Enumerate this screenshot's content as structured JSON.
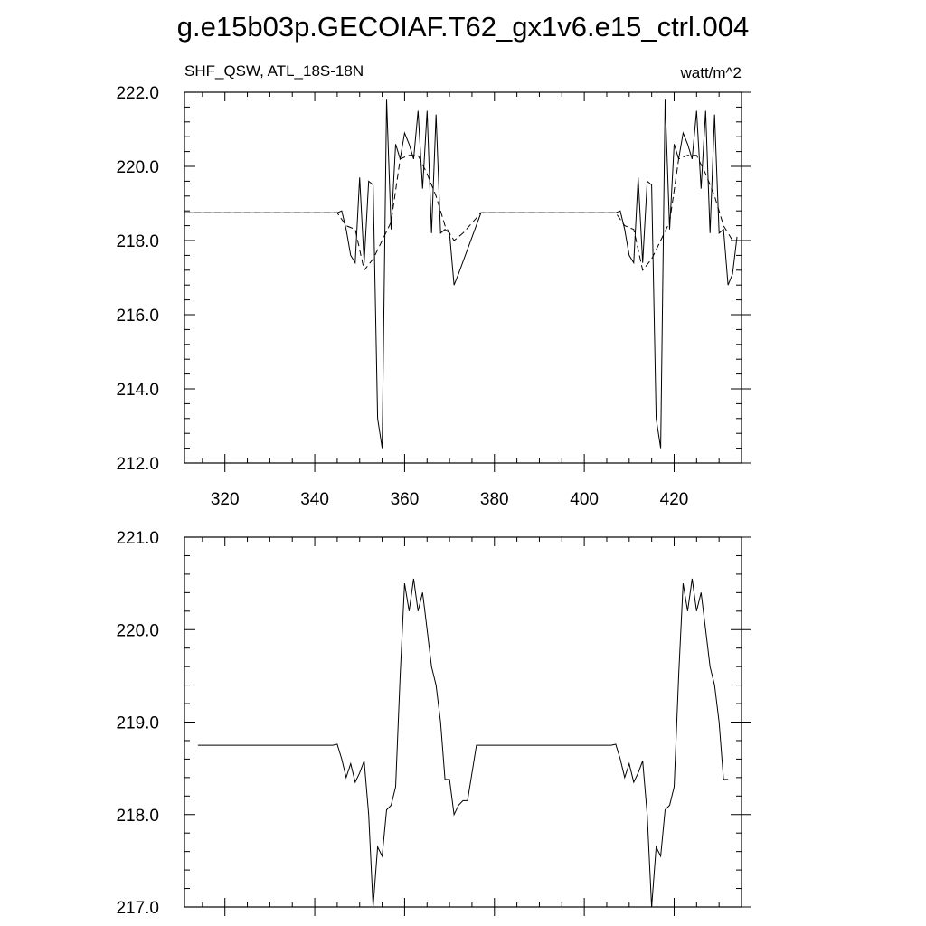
{
  "title": "g.e15b03p.GECOIAF.T62_gx1v6.e15_ctrl.004",
  "chart_data": [
    {
      "type": "line",
      "left_label": "SHF_QSW, ATL_18S-18N",
      "right_label": "watt/m^2",
      "xlim": [
        311,
        435
      ],
      "ylim": [
        212.0,
        222.0
      ],
      "x_ticks": [
        320,
        340,
        360,
        380,
        400,
        420
      ],
      "y_ticks": [
        "212.0",
        "214.0",
        "216.0",
        "218.0",
        "220.0",
        "222.0"
      ],
      "grid": false,
      "series": [
        {
          "style": "solid",
          "x": [
            311,
            345,
            346,
            347,
            348,
            349,
            350,
            351,
            352,
            353,
            354,
            355,
            356,
            357,
            358,
            359,
            360,
            361,
            362,
            363,
            364,
            365,
            366,
            367,
            368,
            369,
            370,
            371,
            372,
            377,
            407,
            408,
            409,
            410,
            411,
            412,
            413,
            414,
            415,
            416,
            417,
            418,
            419,
            420,
            421,
            422,
            423,
            424,
            425,
            426,
            427,
            428,
            429,
            430,
            431,
            432,
            433,
            434
          ],
          "y": [
            218.75,
            218.75,
            218.8,
            218.3,
            217.6,
            217.4,
            219.7,
            217.4,
            219.6,
            219.5,
            213.2,
            212.4,
            221.8,
            218.3,
            220.6,
            220.2,
            220.9,
            220.6,
            220.2,
            221.5,
            219.4,
            221.5,
            218.2,
            221.4,
            218.2,
            218.3,
            218.2,
            216.8,
            217.1,
            218.75,
            218.75,
            218.8,
            218.3,
            217.6,
            217.4,
            219.7,
            217.4,
            219.6,
            219.5,
            213.2,
            212.4,
            221.8,
            218.3,
            220.6,
            220.2,
            220.9,
            220.6,
            220.2,
            221.5,
            219.4,
            221.5,
            218.2,
            221.4,
            218.2,
            218.3,
            216.8,
            217.1,
            218.1
          ]
        },
        {
          "style": "dashed",
          "x": [
            311,
            345,
            347,
            349,
            351,
            353,
            355,
            357,
            359,
            361,
            363,
            365,
            367,
            369,
            371,
            373,
            377,
            407,
            409,
            411,
            413,
            415,
            417,
            419,
            421,
            423,
            425,
            427,
            429,
            431,
            433,
            434
          ],
          "y": [
            218.75,
            218.75,
            218.4,
            218.3,
            217.2,
            217.5,
            218.0,
            218.5,
            220.2,
            220.3,
            220.3,
            219.8,
            219.2,
            218.4,
            218.0,
            218.2,
            218.75,
            218.75,
            218.4,
            218.3,
            217.2,
            217.5,
            218.0,
            218.5,
            220.2,
            220.3,
            220.3,
            219.8,
            219.2,
            218.4,
            218.0,
            218.0
          ]
        }
      ]
    },
    {
      "type": "line",
      "xlim": [
        311,
        435
      ],
      "ylim": [
        217.0,
        221.0
      ],
      "x_ticks": [
        320,
        340,
        360,
        380,
        400,
        420
      ],
      "y_ticks": [
        "217.0",
        "218.0",
        "219.0",
        "220.0",
        "221.0"
      ],
      "grid": false,
      "series": [
        {
          "style": "solid",
          "x": [
            314,
            344,
            345,
            346,
            347,
            348,
            349,
            350,
            351,
            352,
            353,
            354,
            355,
            356,
            357,
            358,
            359,
            360,
            361,
            362,
            363,
            364,
            365,
            366,
            367,
            368,
            369,
            370,
            371,
            372,
            373,
            374,
            376,
            406,
            407,
            408,
            409,
            410,
            411,
            412,
            413,
            414,
            415,
            416,
            417,
            418,
            419,
            420,
            421,
            422,
            423,
            424,
            425,
            426,
            427,
            428,
            429,
            430,
            431,
            432
          ],
          "y": [
            218.75,
            218.75,
            218.76,
            218.6,
            218.4,
            218.55,
            218.35,
            218.45,
            218.58,
            218.0,
            217.0,
            217.65,
            217.55,
            218.05,
            218.1,
            218.3,
            219.5,
            220.5,
            220.2,
            220.55,
            220.2,
            220.4,
            220.0,
            219.6,
            219.4,
            219.0,
            218.38,
            218.38,
            218.0,
            218.1,
            218.15,
            218.15,
            218.75,
            218.75,
            218.76,
            218.6,
            218.4,
            218.55,
            218.35,
            218.45,
            218.58,
            218.0,
            217.0,
            217.65,
            217.55,
            218.05,
            218.1,
            218.3,
            219.5,
            220.5,
            220.2,
            220.55,
            220.2,
            220.4,
            220.0,
            219.6,
            219.4,
            219.0,
            218.38,
            218.38
          ]
        }
      ]
    }
  ]
}
